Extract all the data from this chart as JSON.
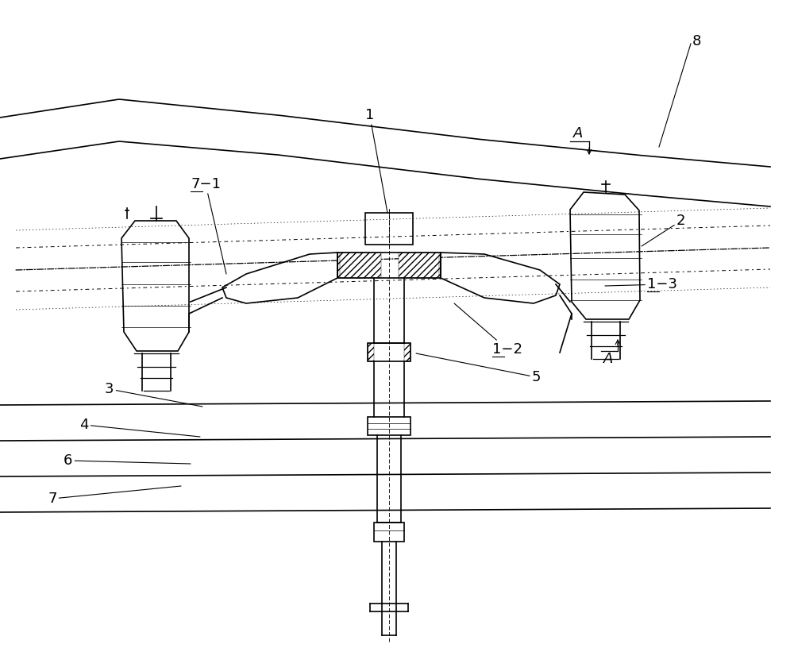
{
  "bg_color": "#ffffff",
  "line_color": "#000000",
  "figsize": [
    10.0,
    8.16
  ]
}
